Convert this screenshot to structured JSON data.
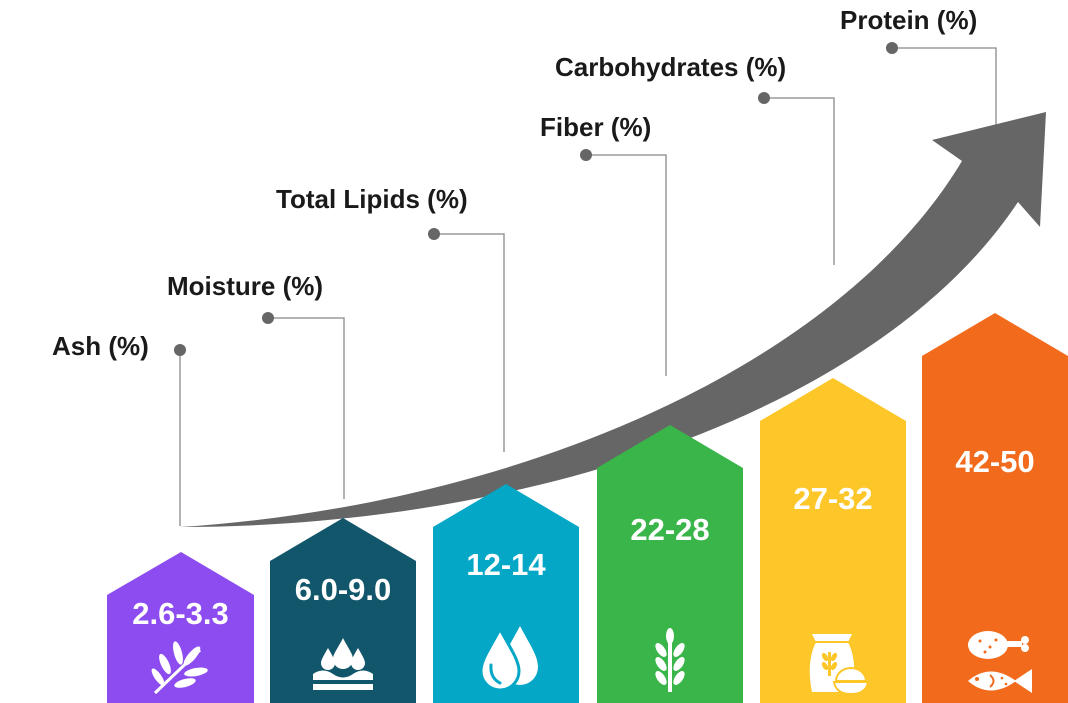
{
  "categories": [
    {
      "label": "Ash (%)",
      "value": "2.6-3.3",
      "color": "#8c4cf0",
      "icon": "herb-leaf-icon"
    },
    {
      "label": "Moisture (%)",
      "value": "6.0-9.0",
      "color": "#12566b",
      "icon": "water-drops-icon"
    },
    {
      "label": "Total Lipids (%)",
      "value": "12-14",
      "color": "#05a7c6",
      "icon": "oil-drop-icon"
    },
    {
      "label": "Fiber (%)",
      "value": "22-28",
      "color": "#3ab54a",
      "icon": "wheat-icon"
    },
    {
      "label": "Carbohydrates (%)",
      "value": "27-32",
      "color": "#fdc629",
      "icon": "flour-sack-icon"
    },
    {
      "label": "Protein (%)",
      "value": "42-50",
      "color": "#f26b1d",
      "icon": "chicken-fish-icon"
    }
  ],
  "arrow_color": "#666666",
  "connector_color": "#888888"
}
